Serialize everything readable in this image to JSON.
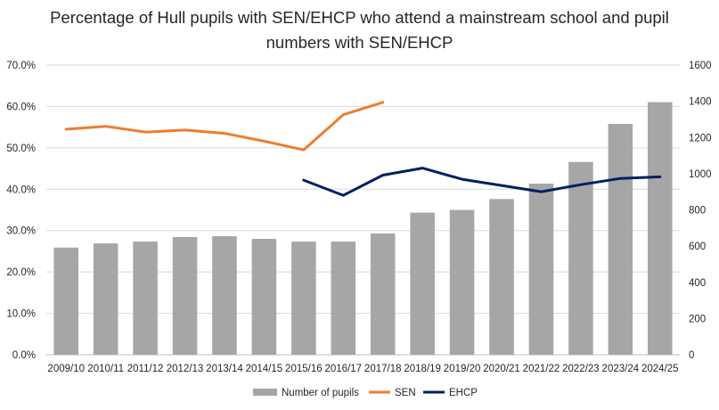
{
  "chart_data": {
    "type": "bar",
    "title": "Percentage of Hull pupils with SEN/EHCP who attend a mainstream school and pupil numbers with SEN/EHCP",
    "categories": [
      "2009/10",
      "2010/11",
      "2011/12",
      "2012/13",
      "2013/14",
      "2014/15",
      "2015/16",
      "2016/17",
      "2017/18",
      "2018/19",
      "2019/20",
      "2020/21",
      "2021/22",
      "2022/23",
      "2023/24",
      "2024/25"
    ],
    "series": [
      {
        "name": "Number of pupils",
        "type": "bar",
        "axis": "right",
        "color": "#a6a6a6",
        "values": [
          592,
          615,
          625,
          650,
          655,
          640,
          625,
          625,
          670,
          785,
          800,
          860,
          945,
          1065,
          1275,
          1395
        ]
      },
      {
        "name": "SEN",
        "type": "line",
        "axis": "left",
        "color": "#ed7d31",
        "values": [
          54.5,
          55.2,
          53.8,
          54.3,
          53.5,
          51.6,
          49.5,
          58.0,
          61.0,
          null,
          null,
          null,
          null,
          null,
          null,
          null
        ]
      },
      {
        "name": "EHCP",
        "type": "line",
        "axis": "left",
        "color": "#002060",
        "values": [
          null,
          null,
          null,
          null,
          null,
          null,
          42.2,
          38.5,
          43.4,
          45.1,
          42.4,
          40.9,
          39.4,
          41.1,
          42.6,
          43.0
        ]
      }
    ],
    "y_left": {
      "ylim": [
        0,
        70
      ],
      "ticks": [
        "0.0%",
        "10.0%",
        "20.0%",
        "30.0%",
        "40.0%",
        "50.0%",
        "60.0%",
        "70.0%"
      ]
    },
    "y_right": {
      "ylim": [
        0,
        1600
      ],
      "ticks": [
        "0",
        "200",
        "400",
        "600",
        "800",
        "1000",
        "1200",
        "1400",
        "1600"
      ]
    },
    "xlabel": "",
    "ylabel": "",
    "grid": true,
    "legend_position": "bottom"
  }
}
